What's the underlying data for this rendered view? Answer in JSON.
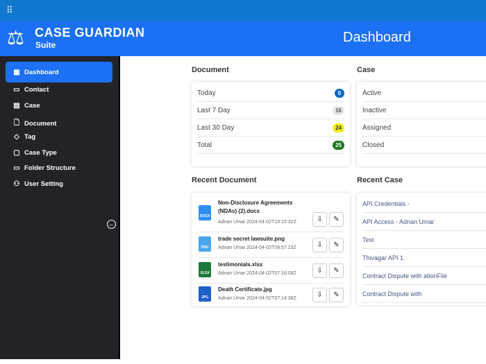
{
  "topbar": {
    "apps_icon": "grid-icon"
  },
  "header": {
    "brand": "CASE GUARDIAN",
    "brand_sub": "Suite",
    "title": "Dashboard",
    "accent": "#1b70f3"
  },
  "sidebar": {
    "items": [
      {
        "label": "Dashboard",
        "icon": "dashboard-icon",
        "active": true
      },
      {
        "label": "Contact",
        "icon": "contact-card-icon"
      },
      {
        "label": "Case",
        "icon": "table-icon"
      },
      {
        "label": "Document",
        "icon": "document-icon"
      },
      {
        "label": "Tag",
        "icon": "tag-icon"
      },
      {
        "label": "Case Type",
        "icon": "case-type-icon"
      },
      {
        "label": "Folder Structure",
        "icon": "folder-icon"
      },
      {
        "label": "User Setting",
        "icon": "user-setting-icon"
      }
    ]
  },
  "document": {
    "title": "Document",
    "rows": [
      {
        "label": "Today",
        "count": "0",
        "color": "#0d6ac6"
      },
      {
        "label": "Last 7 Day",
        "count": "16",
        "color": "#e5e5e8"
      },
      {
        "label": "Last 30 Day",
        "count": "24",
        "color": "#f5ee10"
      },
      {
        "label": "Total",
        "count": "25",
        "color": "#1a7a1a"
      }
    ]
  },
  "case": {
    "title": "Case",
    "rows": [
      "Active",
      "Inactive",
      "Assigned",
      "Closed"
    ]
  },
  "recent_document": {
    "title": "Recent Document",
    "items": [
      {
        "name": "Non-Disclosure Agreements (NDAs) (2).docx",
        "meta": "Adnan Umar 2024-04-02T10:15:32Z",
        "type": "DOCX"
      },
      {
        "name": "trade secret lawsuite.png",
        "meta": "Adnan Umar 2024-04-02T08:57:23Z",
        "type": "PNG"
      },
      {
        "name": "testimonials.xlsx",
        "meta": "Adnan Umar 2024-04-02T07:16:08Z",
        "type": "XLSX"
      },
      {
        "name": "Death Certificate.jpg",
        "meta": "Adnan Umar 2024-04-02T07:14:38Z",
        "type": "JPG"
      }
    ]
  },
  "recent_case": {
    "title": "Recent Case",
    "items": [
      "API Credentials -",
      "API Access - Adnan Umar",
      "Test",
      "Thivagar API 1",
      "Contract Dispute with ationFile",
      "Contract Dispute with"
    ]
  }
}
